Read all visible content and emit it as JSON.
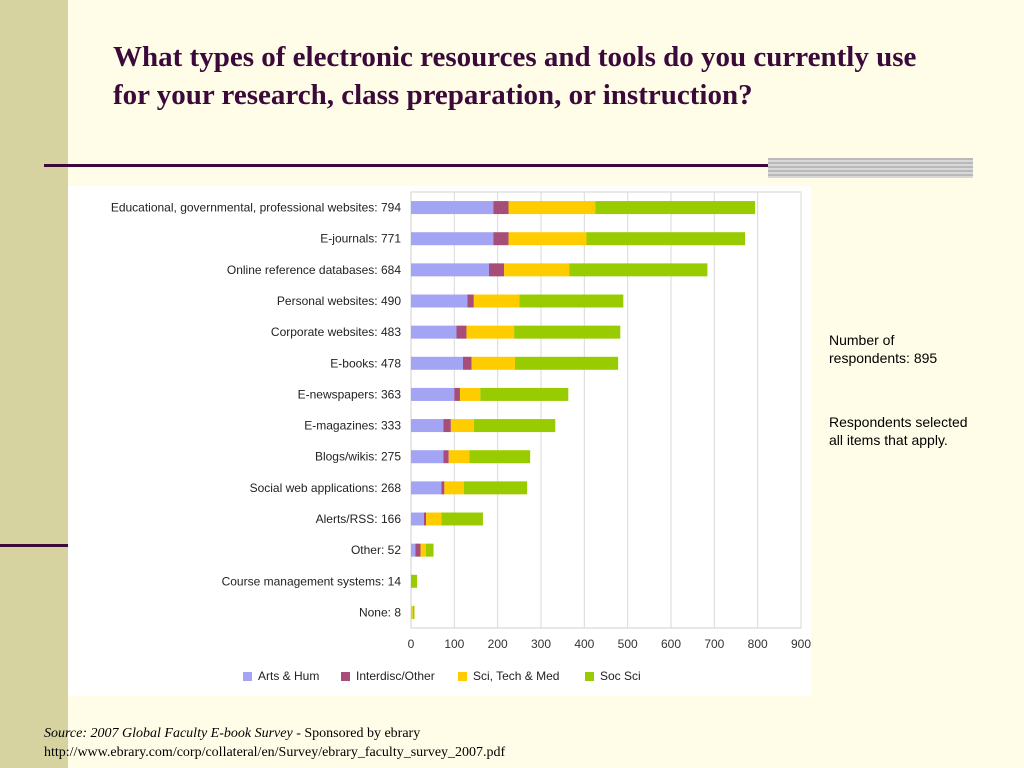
{
  "slide": {
    "title": "What types of electronic resources and tools do you currently use for your research, class preparation, or instruction?",
    "note1": "Number of respondents: 895",
    "note2": "Respondents selected all items that apply.",
    "source_label": "Source: 2007 Global Faculty E-book Survey",
    "source_sponsor": " - Sponsored by ebrary",
    "source_url": "http://www.ebrary.com/corp/collateral/en/Survey/ebrary_faculty_survey_2007.pdf"
  },
  "chart_data": {
    "type": "bar",
    "orientation": "horizontal",
    "stacked": true,
    "title": "",
    "xlabel": "",
    "ylabel": "",
    "xlim": [
      0,
      900
    ],
    "x_ticks": [
      0,
      100,
      200,
      300,
      400,
      500,
      600,
      700,
      800,
      900
    ],
    "grid": true,
    "legend_position": "bottom",
    "categories": [
      "Educational, governmental, professional websites: 794",
      "E-journals: 771",
      "Online reference databases: 684",
      "Personal websites: 490",
      "Corporate websites: 483",
      "E-books: 478",
      "E-newspapers: 363",
      "E-magazines: 333",
      "Blogs/wikis: 275",
      "Social web applications: 268",
      "Alerts/RSS: 166",
      "Other: 52",
      "Course management systems: 14",
      "None: 8"
    ],
    "series": [
      {
        "name": "Arts & Hum",
        "color": "#a4a4f4",
        "values": [
          190,
          190,
          180,
          130,
          105,
          120,
          100,
          75,
          75,
          70,
          30,
          10,
          0,
          0
        ]
      },
      {
        "name": "Interdisc/Other",
        "color": "#a64d79",
        "values": [
          35,
          35,
          35,
          15,
          23,
          20,
          13,
          17,
          12,
          7,
          5,
          12,
          0,
          0
        ]
      },
      {
        "name": "Sci, Tech & Med",
        "color": "#ffcc00",
        "values": [
          200,
          180,
          150,
          105,
          110,
          100,
          47,
          53,
          48,
          45,
          35,
          12,
          0,
          4
        ]
      },
      {
        "name": "Soc Sci",
        "color": "#99cc00",
        "values": [
          369,
          366,
          319,
          240,
          245,
          238,
          203,
          188,
          140,
          146,
          96,
          18,
          14,
          4
        ]
      }
    ]
  }
}
